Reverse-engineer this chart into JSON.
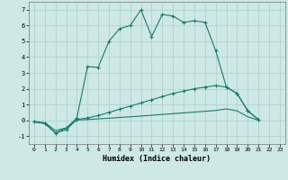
{
  "xlabel": "Humidex (Indice chaleur)",
  "background_color": "#cde8e5",
  "grid_color": "#aacfcc",
  "line_color": "#1a7a6e",
  "xlim": [
    -0.5,
    23.5
  ],
  "ylim": [
    -1.5,
    7.5
  ],
  "xticks": [
    0,
    1,
    2,
    3,
    4,
    5,
    6,
    7,
    8,
    9,
    10,
    11,
    12,
    13,
    14,
    15,
    16,
    17,
    18,
    19,
    20,
    21,
    22,
    23
  ],
  "yticks": [
    -1,
    0,
    1,
    2,
    3,
    4,
    5,
    6,
    7
  ],
  "curve1_x": [
    0,
    1,
    2,
    3,
    4,
    5,
    6,
    7,
    8,
    9,
    10,
    11,
    12,
    13,
    14,
    15,
    16,
    17,
    18,
    19,
    20,
    21
  ],
  "curve1_y": [
    -0.1,
    -0.2,
    -0.8,
    -0.5,
    0.15,
    3.4,
    3.35,
    5.0,
    5.8,
    6.0,
    7.0,
    5.3,
    6.7,
    6.6,
    6.2,
    6.3,
    6.2,
    4.4,
    2.1,
    1.7,
    0.6,
    0.05
  ],
  "curve2_x": [
    0,
    1,
    2,
    3,
    4,
    5,
    6,
    7,
    8,
    9,
    10,
    11,
    12,
    13,
    14,
    15,
    16,
    17,
    18,
    19,
    20,
    21
  ],
  "curve2_y": [
    -0.1,
    -0.2,
    -0.8,
    -0.6,
    0.05,
    0.15,
    0.3,
    0.5,
    0.7,
    0.9,
    1.1,
    1.3,
    1.5,
    1.7,
    1.85,
    2.0,
    2.1,
    2.2,
    2.1,
    1.7,
    0.6,
    0.05
  ],
  "curve3_x": [
    0,
    1,
    2,
    3,
    4,
    5,
    6,
    7,
    8,
    9,
    10,
    11,
    12,
    13,
    14,
    15,
    16,
    17,
    18,
    19,
    20,
    21
  ],
  "curve3_y": [
    -0.08,
    -0.15,
    -0.65,
    -0.48,
    0.02,
    0.05,
    0.09,
    0.13,
    0.18,
    0.22,
    0.27,
    0.32,
    0.37,
    0.42,
    0.47,
    0.52,
    0.57,
    0.62,
    0.72,
    0.6,
    0.22,
    0.01
  ]
}
